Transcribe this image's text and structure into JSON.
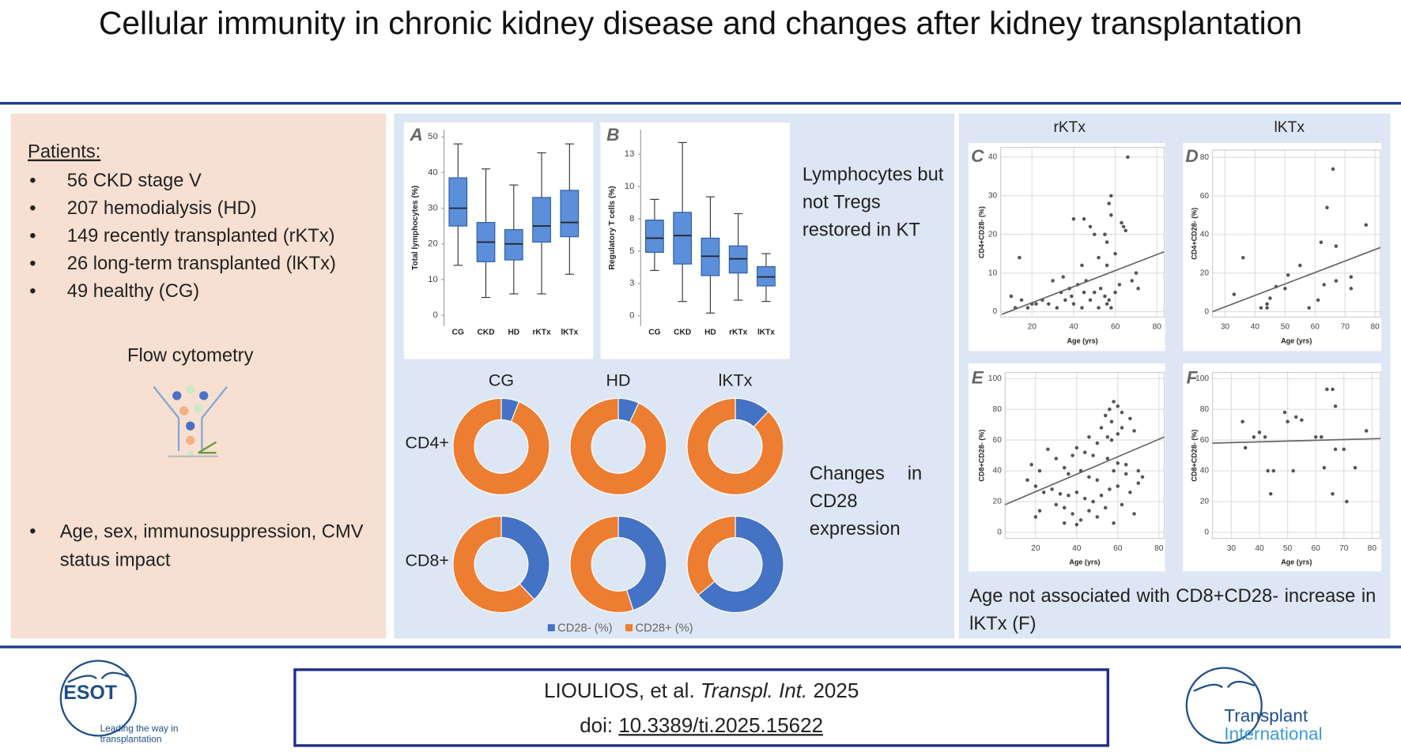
{
  "header": {
    "title": "Cellular immunity in chronic kidney disease and changes after kidney transplantation"
  },
  "patients": {
    "heading": "Patients:",
    "items": [
      "56 CKD stage V",
      "207 hemodialysis (HD)",
      "149 recently transplanted (rKTx)",
      "26 long-term transplanted (lKTx)",
      "49 healthy (CG)"
    ]
  },
  "method": "Flow cytometry",
  "factors": "Age, sex, immunosuppression, CMV status impact",
  "findings": [
    "Lymphocytes but not Tregs restored in KT",
    "Changes in CD28 expression",
    "Age not associated with CD8+CD28- increase in lKTx (F)"
  ],
  "scatter_columns": [
    "rKTx",
    "lKTx"
  ],
  "chart_data": [
    {
      "type": "box",
      "panel_label": "A",
      "y_label": "Total lymphocytes (%)",
      "color": "#5b8fd9",
      "categories": [
        "CG",
        "CKD",
        "HD",
        "rKTx",
        "lKTx"
      ],
      "whisker_low": [
        14,
        5,
        6,
        6,
        11.5
      ],
      "q1": [
        25,
        15,
        15.5,
        20.5,
        22
      ],
      "median": [
        30,
        20.5,
        20,
        25,
        26
      ],
      "q3": [
        38.5,
        26,
        24,
        33,
        35
      ],
      "whisker_high": [
        48,
        41,
        36.5,
        45.5,
        48
      ],
      "ylim": [
        -3,
        52
      ],
      "yticks": [
        0,
        10,
        20,
        30,
        40,
        50
      ]
    },
    {
      "type": "box",
      "panel_label": "B",
      "y_label": "Regulatory T cells (%)",
      "color": "#5b8fd9",
      "categories": [
        "CG",
        "CKD",
        "HD",
        "rKTx",
        "lKTx"
      ],
      "whisker_low": [
        3.5,
        1.1,
        0.2,
        1.2,
        1.1
      ],
      "q1": [
        4.9,
        4,
        3.1,
        3.3,
        2.3
      ],
      "median": [
        6,
        6.2,
        4.6,
        4.4,
        3
      ],
      "q3": [
        7.4,
        8,
        6,
        5.4,
        3.8
      ],
      "whisker_high": [
        9,
        13.4,
        9.2,
        7.9,
        4.8
      ],
      "ylim": [
        -0.8,
        14.4
      ],
      "yticks": [
        0,
        {
          "value": 2.5,
          "label": "3"
        },
        5,
        {
          "value": 7.5,
          "label": "8"
        },
        10,
        {
          "value": 12.5,
          "label": "13"
        }
      ]
    },
    {
      "type": "donut",
      "columns": [
        "CG",
        "HD",
        "lKTx"
      ],
      "rows": [
        "CD4+",
        "CD8+"
      ],
      "series": [
        {
          "name": "CD28- (%)",
          "color": "#4472c4",
          "values": [
            [
              6,
              7,
              12
            ],
            [
              38,
              45,
              64
            ]
          ]
        },
        {
          "name": "CD28+ (%)",
          "color": "#ed7d31",
          "values": [
            [
              94,
              93,
              88
            ],
            [
              62,
              55,
              36
            ]
          ]
        }
      ]
    },
    {
      "type": "scatter",
      "panel_label": "C",
      "x_label": "Age (yrs)",
      "y_label": "CD4+CD28- (%)",
      "color": "#555555",
      "grid": true,
      "x": [
        66,
        58,
        57,
        63,
        64,
        65,
        40,
        45,
        58,
        48,
        14,
        55,
        50,
        56,
        60,
        52,
        44,
        56,
        70,
        68,
        71,
        30,
        35,
        38,
        42,
        46,
        50,
        53,
        55,
        57,
        60,
        62,
        25,
        20,
        15,
        10,
        12,
        18,
        22,
        28,
        32,
        36,
        40,
        44,
        48,
        52,
        56,
        58,
        45,
        39,
        34
      ],
      "y": [
        40,
        30,
        28,
        23,
        22,
        21,
        24,
        24,
        25,
        22,
        14,
        20,
        20,
        18,
        15,
        14,
        12,
        12,
        10,
        8,
        6,
        8,
        9,
        6,
        7,
        8,
        5,
        6,
        4,
        3,
        5,
        7,
        3,
        2,
        3,
        4,
        1,
        1,
        2,
        2,
        1,
        3,
        2,
        1,
        3,
        1,
        2,
        1,
        5,
        4,
        5
      ],
      "trend": {
        "x": [
          5.5,
          83.4
        ],
        "y": [
          -0.7,
          15.5
        ]
      },
      "xlim": [
        5,
        83.5
      ],
      "ylim": [
        -1.4,
        42.5
      ],
      "xticks": [
        20,
        40,
        60,
        80
      ],
      "yticks": [
        0,
        10,
        20,
        30,
        40
      ]
    },
    {
      "type": "scatter",
      "panel_label": "D",
      "x_label": "Age (yrs)",
      "y_label": "CD4+CD28- (%)",
      "color": "#555555",
      "grid": true,
      "x": [
        36,
        33,
        44,
        44,
        45,
        47,
        50,
        51,
        55,
        62,
        64,
        66,
        67,
        58,
        61,
        63,
        67,
        72,
        72,
        77,
        42
      ],
      "y": [
        28,
        9,
        2,
        4,
        7,
        13,
        12,
        19,
        24,
        36,
        54,
        74,
        34,
        2,
        6,
        14,
        16,
        12,
        18,
        45,
        2
      ],
      "trend": {
        "x": [
          25.8,
          81.8
        ],
        "y": [
          0,
          33.3
        ]
      },
      "xlim": [
        25.8,
        81.8
      ],
      "ylim": [
        -2.8,
        83.8
      ],
      "xticks": [
        30,
        40,
        50,
        60,
        70,
        80
      ],
      "yticks": [
        0,
        20,
        40,
        60,
        80
      ]
    },
    {
      "type": "scatter",
      "panel_label": "E",
      "x_label": "Age (yrs)",
      "y_label": "CD8+CD28- (%)",
      "color": "#555555",
      "grid": true,
      "x": [
        58,
        60,
        56,
        62,
        66,
        54,
        57,
        52,
        62,
        68,
        60,
        55,
        57,
        46,
        50,
        40,
        44,
        38,
        26,
        30,
        48,
        55,
        60,
        64,
        70,
        72,
        34,
        36,
        42,
        46,
        50,
        18,
        22,
        16,
        20,
        24,
        28,
        32,
        36,
        40,
        44,
        48,
        52,
        56,
        60,
        66,
        70,
        30,
        34,
        38,
        42,
        46,
        50,
        54,
        58,
        62,
        68,
        20,
        22,
        40,
        34,
        64,
        58
      ],
      "y": [
        85,
        82,
        80,
        78,
        74,
        76,
        72,
        68,
        68,
        66,
        64,
        62,
        60,
        62,
        58,
        55,
        52,
        50,
        54,
        48,
        50,
        48,
        45,
        44,
        40,
        36,
        42,
        38,
        40,
        36,
        34,
        44,
        40,
        34,
        30,
        26,
        28,
        25,
        24,
        26,
        22,
        20,
        24,
        28,
        30,
        26,
        32,
        18,
        16,
        12,
        8,
        14,
        10,
        16,
        6,
        18,
        12,
        10,
        14,
        5,
        6,
        38,
        40
      ],
      "trend": {
        "x": [
          5.2,
          82.6
        ],
        "y": [
          18,
          62
        ]
      },
      "xlim": [
        5.2,
        82.6
      ],
      "ylim": [
        -4,
        104
      ],
      "xticks": [
        20,
        40,
        60,
        80
      ],
      "yticks": [
        0,
        20,
        40,
        60,
        80,
        100
      ]
    },
    {
      "type": "scatter",
      "panel_label": "F",
      "x_label": "Age (yrs)",
      "y_label": "CD8+CD28- (%)",
      "color": "#555555",
      "grid": true,
      "x": [
        34,
        35,
        38,
        40,
        42,
        43,
        45,
        44,
        49,
        50,
        53,
        55,
        52,
        60,
        62,
        63,
        64,
        66,
        66,
        67,
        67,
        70,
        71,
        74,
        78
      ],
      "y": [
        72,
        55,
        62,
        65,
        62,
        40,
        40,
        25,
        78,
        72,
        75,
        73,
        40,
        62,
        62,
        42,
        93,
        93,
        25,
        82,
        54,
        54,
        20,
        42,
        66
      ],
      "trend": {
        "x": [
          23.3,
          83
        ],
        "y": [
          58,
          61
        ]
      },
      "xlim": [
        23.3,
        83
      ],
      "ylim": [
        -4,
        104
      ],
      "xticks": [
        30,
        40,
        50,
        60,
        70,
        80
      ],
      "yticks": [
        0,
        20,
        40,
        60,
        80,
        100
      ]
    }
  ],
  "citation": {
    "authors": "LIOULIOS, et al.",
    "journal": "Transpl. Int.",
    "year": 2025,
    "doi_label": "doi:",
    "doi": "10.3389/ti.2025.15622"
  },
  "logos": {
    "esot": "ESOT",
    "esot_tagline": "Leading the way in transplantation",
    "journal_line1": "Transplant",
    "journal_line2": "International"
  }
}
